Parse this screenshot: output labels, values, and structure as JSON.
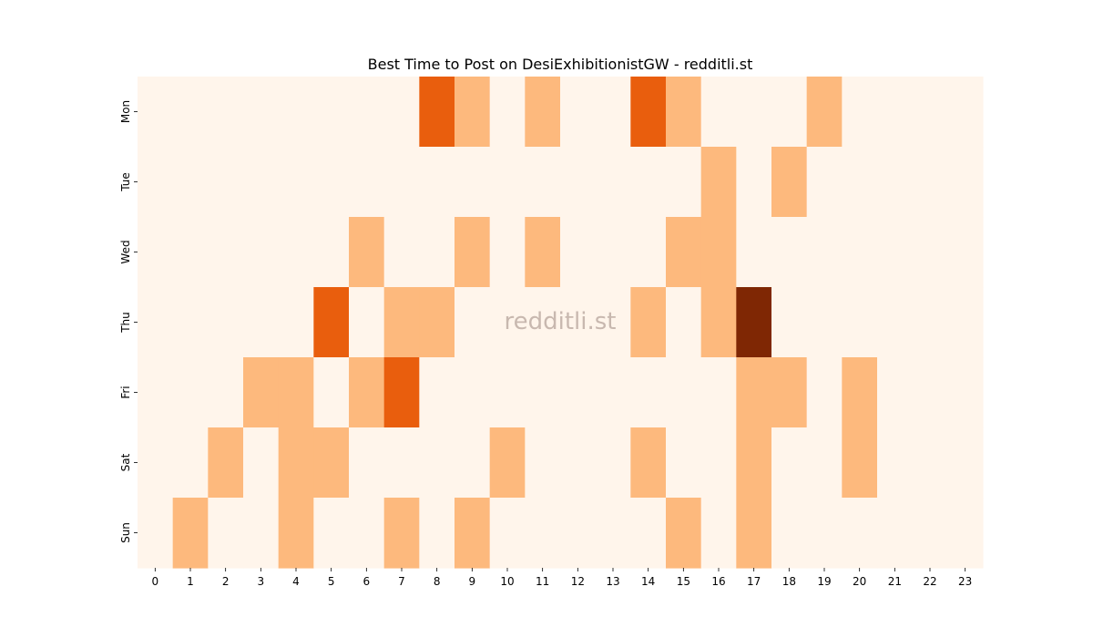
{
  "chart_data": {
    "type": "heatmap",
    "title": "Best Time to Post on DesiExhibitionistGW - redditli.st",
    "watermark": "redditli.st",
    "xlabel": "",
    "ylabel": "",
    "x_categories": [
      "0",
      "1",
      "2",
      "3",
      "4",
      "5",
      "6",
      "7",
      "8",
      "9",
      "10",
      "11",
      "12",
      "13",
      "14",
      "15",
      "16",
      "17",
      "18",
      "19",
      "20",
      "21",
      "22",
      "23"
    ],
    "y_categories": [
      "Mon",
      "Tue",
      "Wed",
      "Thu",
      "Fri",
      "Sat",
      "Sun"
    ],
    "value_range": [
      0,
      3
    ],
    "colorscale": [
      "#fff5eb",
      "#fdb97d",
      "#e95e0d",
      "#7f2704"
    ],
    "legend": "none",
    "grid": false,
    "values": [
      [
        0,
        0,
        0,
        0,
        0,
        0,
        0,
        0,
        2,
        1,
        0,
        1,
        0,
        0,
        2,
        1,
        0,
        0,
        0,
        1,
        0,
        0,
        0,
        0
      ],
      [
        0,
        0,
        0,
        0,
        0,
        0,
        0,
        0,
        0,
        0,
        0,
        0,
        0,
        0,
        0,
        0,
        1,
        0,
        1,
        0,
        0,
        0,
        0,
        0
      ],
      [
        0,
        0,
        0,
        0,
        0,
        0,
        1,
        0,
        0,
        1,
        0,
        1,
        0,
        0,
        0,
        1,
        1,
        0,
        0,
        0,
        0,
        0,
        0,
        0
      ],
      [
        0,
        0,
        0,
        0,
        0,
        2,
        0,
        1,
        1,
        0,
        0,
        0,
        0,
        0,
        1,
        0,
        1,
        3,
        0,
        0,
        0,
        0,
        0,
        0
      ],
      [
        0,
        0,
        0,
        1,
        1,
        0,
        1,
        2,
        0,
        0,
        0,
        0,
        0,
        0,
        0,
        0,
        0,
        1,
        1,
        0,
        1,
        0,
        0,
        0
      ],
      [
        0,
        0,
        1,
        0,
        1,
        1,
        0,
        0,
        0,
        0,
        1,
        0,
        0,
        0,
        1,
        0,
        0,
        1,
        0,
        0,
        1,
        0,
        0,
        0
      ],
      [
        0,
        1,
        0,
        0,
        1,
        0,
        0,
        1,
        0,
        1,
        0,
        0,
        0,
        0,
        0,
        1,
        0,
        1,
        0,
        0,
        0,
        0,
        0,
        0
      ]
    ]
  }
}
